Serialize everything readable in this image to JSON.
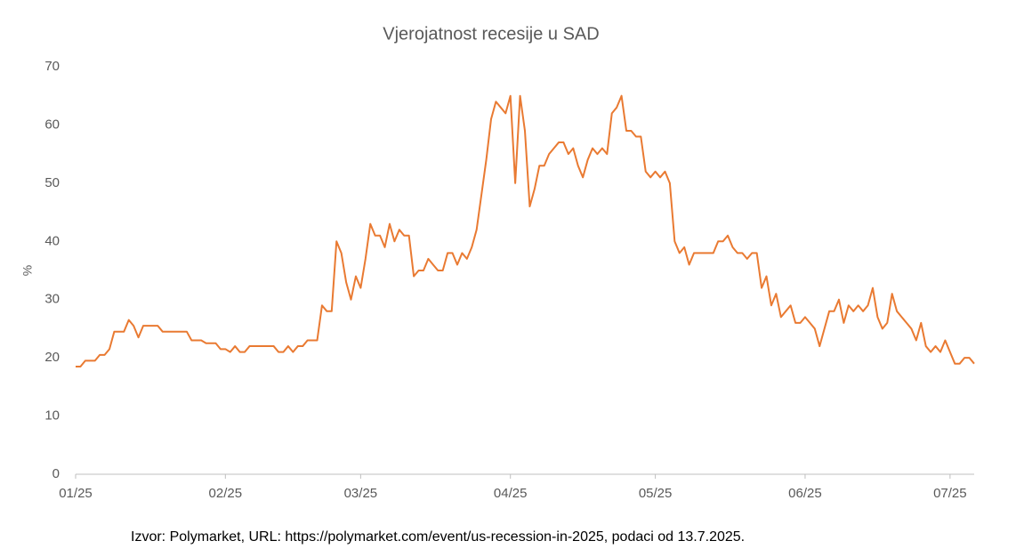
{
  "chart_data": {
    "type": "line",
    "title": "Vjerojatnost recesije u SAD",
    "y_label": "%",
    "source": "Izvor: Polymarket, URL: https://polymarket.com/event/us-recession-in-2025, podaci od 13.7.2025.",
    "x": [
      0,
      1,
      2,
      4,
      5,
      6,
      7,
      8,
      10,
      11,
      12,
      13,
      14,
      17,
      18,
      23,
      24,
      26,
      27,
      29,
      30,
      31,
      32,
      33,
      34,
      35,
      36,
      41,
      42,
      43,
      44,
      45,
      46,
      47,
      48,
      50,
      51,
      52,
      53,
      54,
      55,
      56,
      57,
      58,
      59,
      60,
      61,
      62,
      63,
      64,
      65,
      66,
      67,
      68,
      69,
      70,
      71,
      72,
      73,
      74,
      75,
      76,
      77,
      78,
      79,
      80,
      81,
      82,
      83,
      84,
      85,
      86,
      87,
      88,
      89,
      90,
      91,
      92,
      93,
      94,
      95,
      96,
      97,
      98,
      99,
      100,
      101,
      102,
      103,
      104,
      105,
      106,
      107,
      108,
      109,
      110,
      111,
      112,
      113,
      114,
      115,
      116,
      117,
      118,
      119,
      120,
      121,
      122,
      123,
      124,
      125,
      126,
      127,
      128,
      132,
      133,
      134,
      135,
      136,
      137,
      138,
      139,
      140,
      141,
      142,
      143,
      144,
      145,
      146,
      147,
      148,
      149,
      150,
      151,
      152,
      153,
      154,
      155,
      156,
      157,
      158,
      159,
      160,
      161,
      162,
      163,
      164,
      165,
      166,
      167,
      168,
      169,
      170,
      171,
      172,
      173,
      174,
      175,
      176,
      177,
      178,
      179,
      180,
      181,
      182,
      183,
      184,
      185,
      186
    ],
    "series": [
      {
        "name": "Vjerojatnost recesije",
        "color": "#e97a32",
        "values": [
          18.5,
          18.5,
          19.5,
          19.5,
          20.5,
          20.5,
          21.5,
          24.5,
          24.5,
          26.5,
          25.5,
          23.5,
          25.5,
          25.5,
          24.5,
          24.5,
          23,
          23,
          22.5,
          22.5,
          21.5,
          21.5,
          21,
          22,
          21,
          21,
          22,
          22,
          21,
          21,
          22,
          21,
          22,
          22,
          23,
          23,
          29,
          28,
          28,
          40,
          38,
          33,
          30,
          34,
          32,
          37,
          43,
          41,
          41,
          39,
          43,
          40,
          42,
          41,
          41,
          34,
          35,
          35,
          37,
          36,
          35,
          35,
          38,
          38,
          36,
          38,
          37,
          39,
          42,
          48,
          54,
          61,
          64,
          63,
          62,
          65,
          50,
          65,
          59,
          46,
          49,
          53,
          53,
          55,
          56,
          57,
          57,
          55,
          56,
          53,
          51,
          54,
          56,
          55,
          56,
          55,
          62,
          63,
          65,
          59,
          59,
          58,
          58,
          52,
          51,
          52,
          51,
          52,
          50,
          40,
          38,
          39,
          36,
          38,
          38,
          40,
          40,
          41,
          39,
          38,
          38,
          37,
          38,
          38,
          32,
          34,
          29,
          31,
          27,
          28,
          29,
          26,
          26,
          27,
          26,
          25,
          22,
          25,
          28,
          28,
          30,
          26,
          29,
          28,
          29,
          28,
          29,
          32,
          27,
          25,
          26,
          31,
          28,
          27,
          26,
          25,
          23,
          26,
          22,
          21,
          22,
          21,
          23,
          21,
          19,
          19,
          20,
          20,
          19
        ]
      }
    ],
    "xlim": [
      0,
      186
    ],
    "xticks": [
      {
        "value": 0,
        "label": "01/25"
      },
      {
        "value": 31,
        "label": "02/25"
      },
      {
        "value": 59,
        "label": "03/25"
      },
      {
        "value": 90,
        "label": "04/25"
      },
      {
        "value": 120,
        "label": "05/25"
      },
      {
        "value": 151,
        "label": "06/25"
      },
      {
        "value": 181,
        "label": "07/25"
      }
    ],
    "ylim": [
      0,
      70
    ],
    "yticks": [
      0,
      10,
      20,
      30,
      40,
      50,
      60,
      70
    ],
    "grid": false
  }
}
